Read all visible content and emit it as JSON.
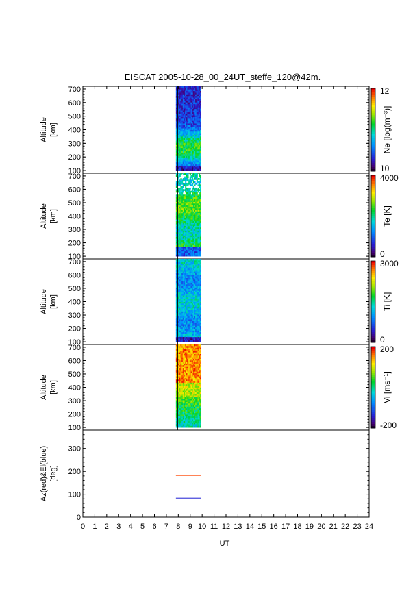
{
  "title": "EISCAT 2005-10-28_00_24UT_steffe_120@42m.",
  "xlabel": "UT",
  "x_ticks": [
    "0",
    "1",
    "2",
    "3",
    "4",
    "5",
    "6",
    "7",
    "8",
    "9",
    "10",
    "11",
    "12",
    "13",
    "14",
    "15",
    "16",
    "17",
    "18",
    "19",
    "20",
    "21",
    "22",
    "23",
    "24"
  ],
  "chart_data": [
    {
      "type": "heatmap",
      "panel": "Ne",
      "ylabel_line1": "Altitude",
      "ylabel_line2": "[km]",
      "y_ticks": [
        "100",
        "200",
        "300",
        "400",
        "500",
        "600",
        "700"
      ],
      "ylim": [
        80,
        720
      ],
      "xlim": [
        0,
        24
      ],
      "data_time_range": [
        7.8,
        9.9
      ],
      "colorbar_label": "Ne [log(m⁻³)]",
      "colorbar_range": [
        "10",
        "12"
      ],
      "colorscale": "rainbow"
    },
    {
      "type": "heatmap",
      "panel": "Te",
      "ylabel_line1": "Altitude",
      "ylabel_line2": "[km]",
      "y_ticks": [
        "100",
        "200",
        "300",
        "400",
        "500",
        "600",
        "700"
      ],
      "ylim": [
        80,
        720
      ],
      "xlim": [
        0,
        24
      ],
      "data_time_range": [
        7.8,
        9.9
      ],
      "colorbar_label": "Te [K]",
      "colorbar_range": [
        "0",
        "4000"
      ],
      "colorscale": "rainbow"
    },
    {
      "type": "heatmap",
      "panel": "Ti",
      "ylabel_line1": "Altitude",
      "ylabel_line2": "[km]",
      "y_ticks": [
        "100",
        "200",
        "300",
        "400",
        "500",
        "600",
        "700"
      ],
      "ylim": [
        80,
        720
      ],
      "xlim": [
        0,
        24
      ],
      "data_time_range": [
        7.8,
        9.9
      ],
      "colorbar_label": "Ti [K]",
      "colorbar_range": [
        "0",
        "3000"
      ],
      "colorscale": "rainbow"
    },
    {
      "type": "heatmap",
      "panel": "Vi",
      "ylabel_line1": "Altitude",
      "ylabel_line2": "[km]",
      "y_ticks": [
        "100",
        "200",
        "300",
        "400",
        "500",
        "600",
        "700"
      ],
      "ylim": [
        80,
        720
      ],
      "xlim": [
        0,
        24
      ],
      "data_time_range": [
        7.8,
        9.9
      ],
      "colorbar_label": "Vi [ms⁻¹]",
      "colorbar_range": [
        "-200",
        "200"
      ],
      "colorscale": "rainbow"
    },
    {
      "type": "line",
      "panel": "Az/El",
      "ylabel_line1": "Az(red)&El(blue)",
      "ylabel_line2": "[deg]",
      "y_ticks": [
        "0",
        "100",
        "200",
        "300"
      ],
      "ylim": [
        0,
        380
      ],
      "xlim": [
        0,
        24
      ],
      "series": [
        {
          "color": "#ff5a1e",
          "x": [
            7.8,
            9.9
          ],
          "y": [
            182,
            182
          ]
        },
        {
          "color": "#4a4adc",
          "x": [
            7.8,
            9.9
          ],
          "y": [
            83,
            83
          ]
        }
      ]
    }
  ]
}
